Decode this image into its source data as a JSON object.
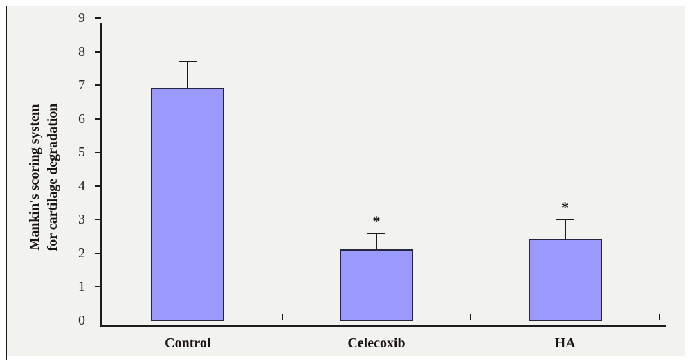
{
  "figure": {
    "background_color": "#ffffff",
    "panel_color": "#f2f2ef",
    "left_rule_color": "#1a1a1a"
  },
  "chart_data": {
    "type": "bar",
    "title": "",
    "ylabel": "Mankin's scoring system for cartilage degradation",
    "ylabel_lines": [
      "Mankin's scoring system",
      "for cartilage degradation"
    ],
    "xlabel": "",
    "categories": [
      "Control",
      "Celecoxib",
      "HA"
    ],
    "values": [
      6.9,
      2.1,
      2.4
    ],
    "error_upper": [
      0.8,
      0.5,
      0.6
    ],
    "significance": [
      "",
      "*",
      "*"
    ],
    "ylim": [
      0,
      9
    ],
    "yticks": [
      0,
      1,
      2,
      3,
      4,
      5,
      6,
      7,
      8,
      9
    ],
    "grid": false,
    "legend_position": "none",
    "bar_fill_color": "#9b9afc",
    "bar_border_color": "#26263e",
    "axis_color": "#1c1c1c"
  }
}
